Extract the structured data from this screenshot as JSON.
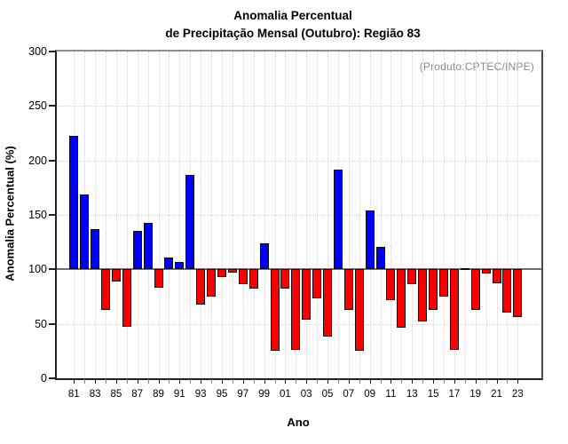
{
  "header": {
    "title_line1": "Anomalia Percentual",
    "title_line2": "de Precipitação Mensal (Outubro): Região 83"
  },
  "annotation": {
    "produto_label": "(Produto:CPTEC/INPE)",
    "produto_color": "#8a8a8a"
  },
  "axes": {
    "x_title": "Ano",
    "y_title": "Anomalia Percentual (%)"
  },
  "chart_data": {
    "type": "bar",
    "title": "Anomalia Percentual de Precipitação Mensal (Outubro): Região 83",
    "xlabel": "Ano",
    "ylabel": "Anomalia Percentual (%)",
    "ylim": [
      0,
      300
    ],
    "yticks": [
      0,
      50,
      100,
      150,
      200,
      250,
      300
    ],
    "baseline": 100,
    "grid": "dotted vertical line per year; dotted horizontal line per 50 units; solid gray line at 100",
    "legend_position": "none",
    "colors": {
      "above_baseline": "#0000f5",
      "below_baseline": "#f80000",
      "bar_border": "#101010",
      "baseline_line": "#6e6e78"
    },
    "x_tick_labels": [
      "81",
      "83",
      "85",
      "87",
      "89",
      "91",
      "93",
      "95",
      "97",
      "99",
      "01",
      "03",
      "05",
      "07",
      "09",
      "11",
      "13",
      "15",
      "17",
      "19",
      "21",
      "23"
    ],
    "years": [
      1981,
      1982,
      1983,
      1984,
      1985,
      1986,
      1987,
      1988,
      1989,
      1990,
      1991,
      1992,
      1993,
      1994,
      1995,
      1996,
      1997,
      1998,
      1999,
      2000,
      2001,
      2002,
      2003,
      2004,
      2005,
      2006,
      2007,
      2008,
      2009,
      2010,
      2011,
      2012,
      2013,
      2014,
      2015,
      2016,
      2017,
      2018,
      2019,
      2020,
      2021,
      2022,
      2023
    ],
    "values": [
      223,
      169,
      137,
      63,
      89,
      47,
      135,
      143,
      83,
      111,
      107,
      187,
      68,
      75,
      93,
      97,
      86,
      82,
      124,
      25,
      82,
      26,
      54,
      73,
      38,
      192,
      63,
      25,
      154,
      121,
      72,
      46,
      86,
      52,
      63,
      75,
      26,
      101,
      63,
      96,
      87,
      60,
      56
    ]
  }
}
